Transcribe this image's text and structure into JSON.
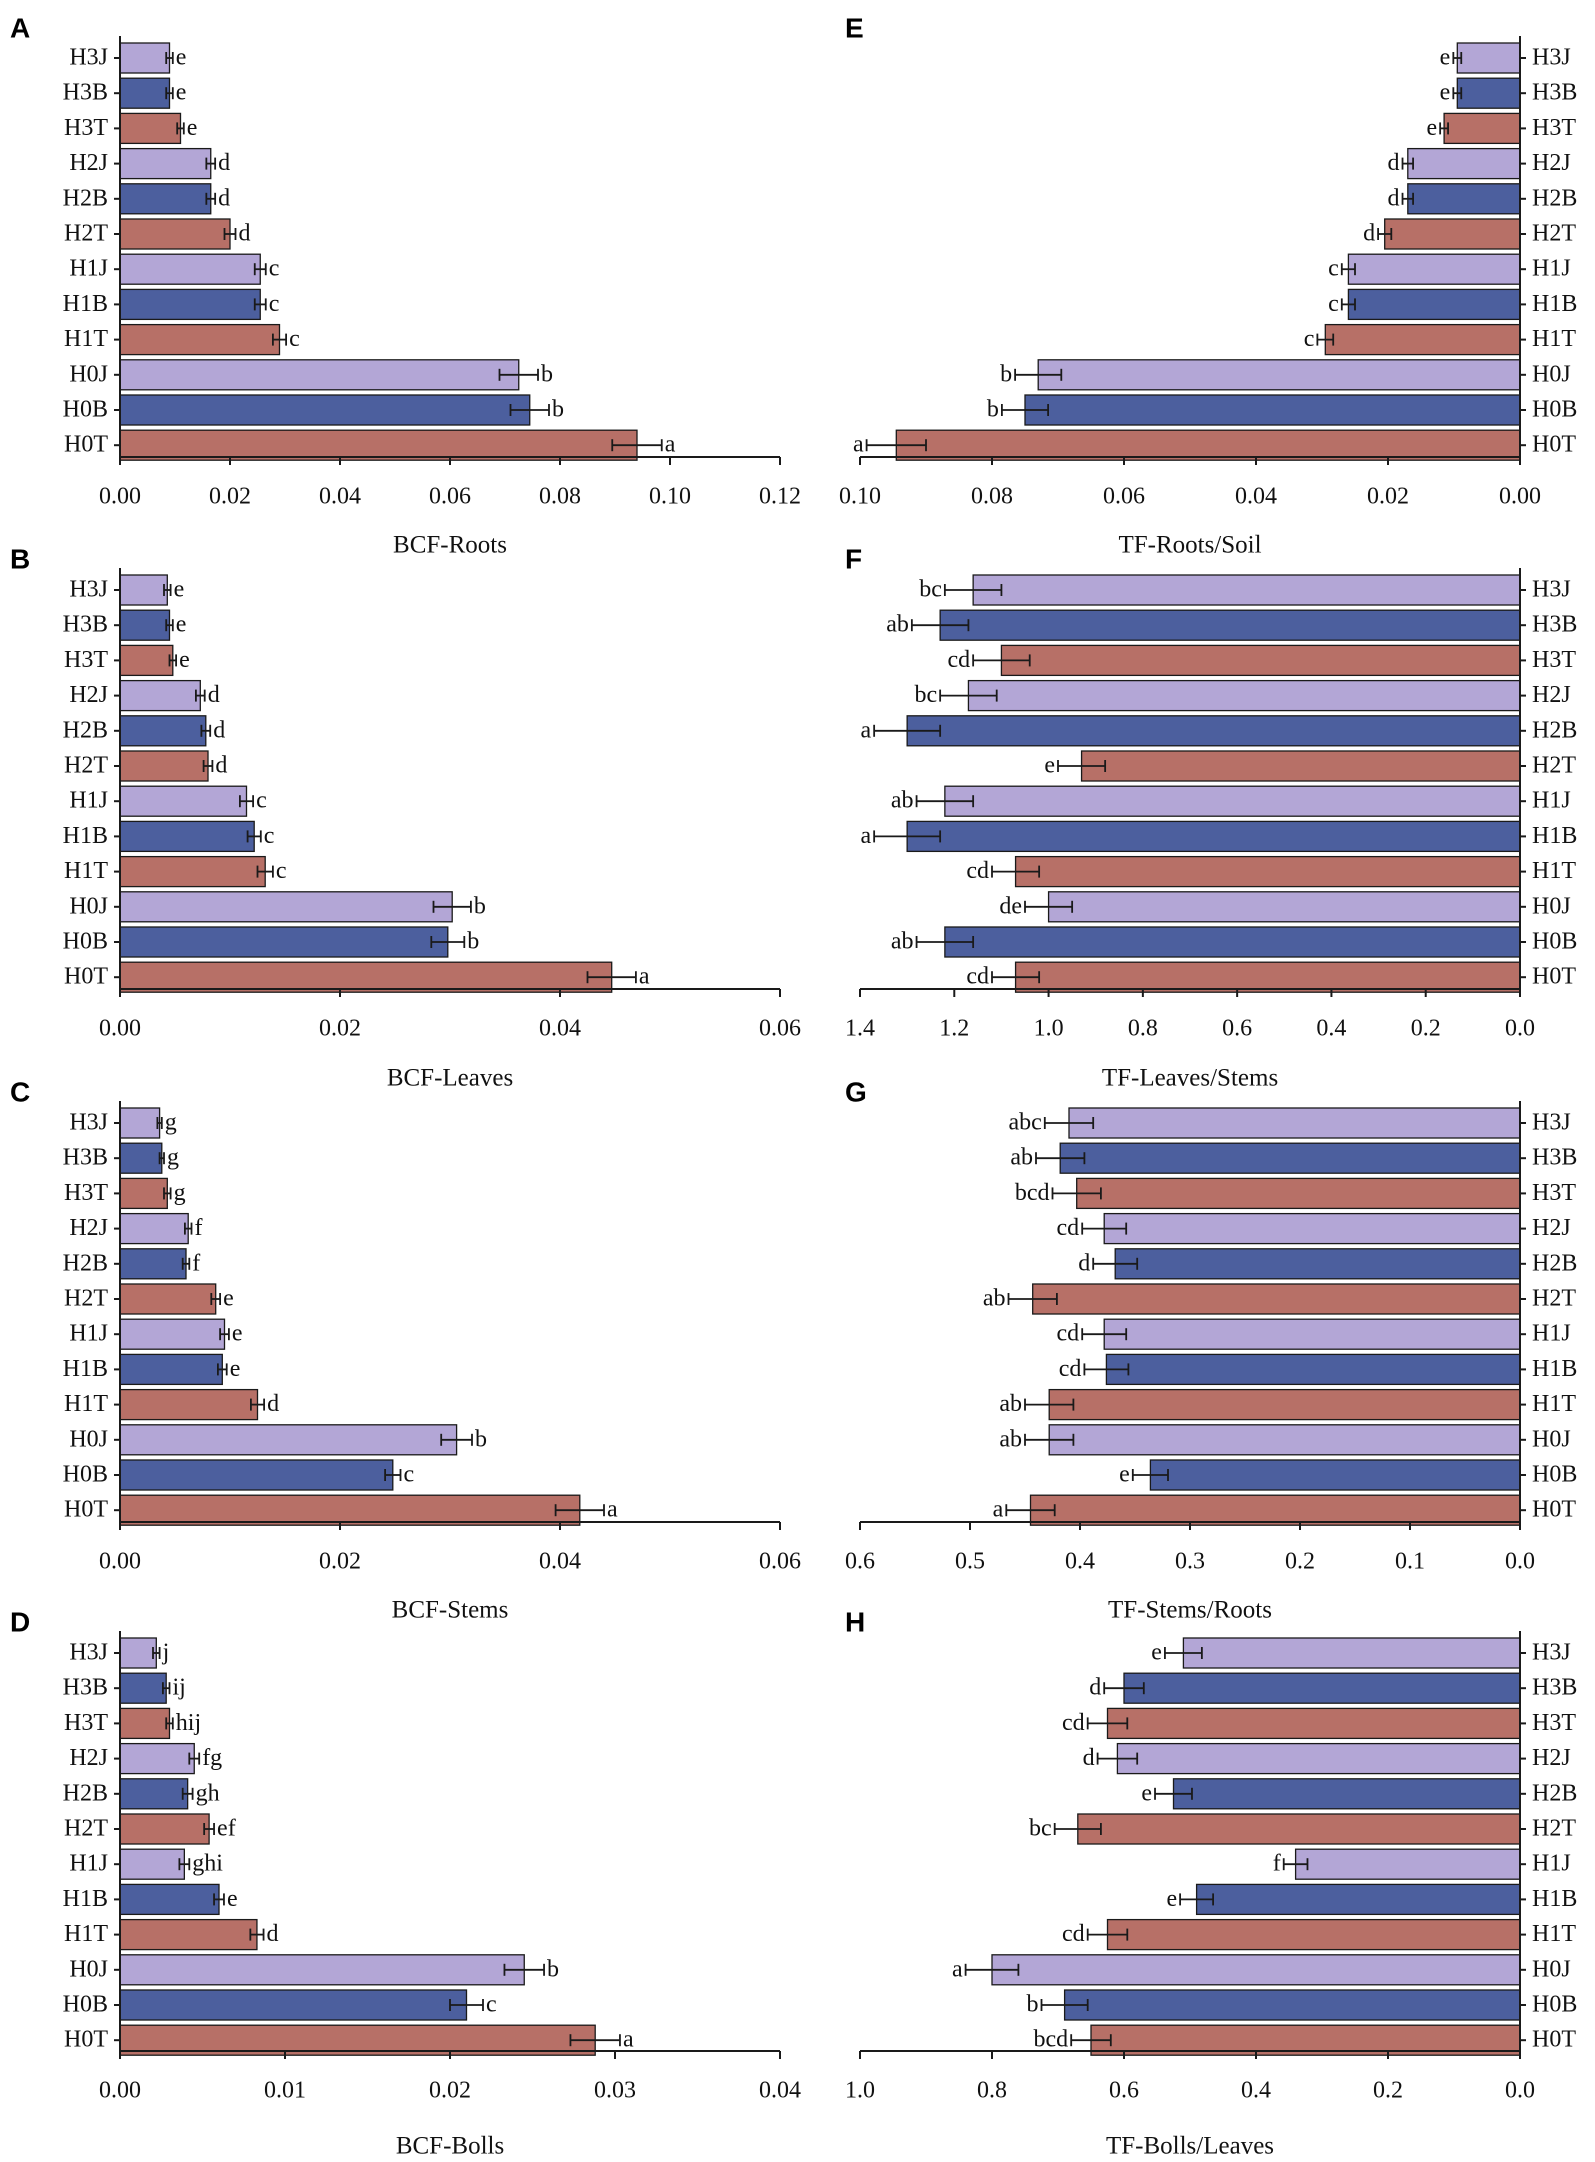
{
  "colors": {
    "J": "#B3A6D6",
    "B": "#4C5F9E",
    "T": "#B77067",
    "stroke": "#1a1a1a"
  },
  "chart_data": [
    {
      "panel": "A",
      "type": "bar",
      "orientation": "horizontal",
      "xlabel": "BCF-Roots",
      "xlim": [
        0,
        0.12
      ],
      "reversed": false,
      "ticks": [
        0,
        0.02,
        0.04,
        0.06,
        0.08,
        0.1,
        0.12
      ],
      "tick_labels": [
        "0.00",
        "0.02",
        "0.04",
        "0.06",
        "0.08",
        "0.10",
        "0.12"
      ],
      "categories": [
        "H3J",
        "H3B",
        "H3T",
        "H2J",
        "H2B",
        "H2T",
        "H1J",
        "H1B",
        "H1T",
        "H0J",
        "H0B",
        "H0T"
      ],
      "values": [
        0.009,
        0.009,
        0.011,
        0.0165,
        0.0165,
        0.02,
        0.0255,
        0.0255,
        0.029,
        0.0725,
        0.0745,
        0.094
      ],
      "errors": [
        0.0006,
        0.0006,
        0.0006,
        0.0008,
        0.0008,
        0.001,
        0.001,
        0.001,
        0.0012,
        0.0035,
        0.0035,
        0.0045
      ],
      "letters": [
        "e",
        "e",
        "e",
        "d",
        "d",
        "d",
        "c",
        "c",
        "c",
        "b",
        "b",
        "a"
      ]
    },
    {
      "panel": "B",
      "type": "bar",
      "orientation": "horizontal",
      "xlabel": "BCF-Leaves",
      "xlim": [
        0,
        0.06
      ],
      "reversed": false,
      "ticks": [
        0,
        0.02,
        0.04,
        0.06
      ],
      "tick_labels": [
        "0.00",
        "0.02",
        "0.04",
        "0.06"
      ],
      "categories": [
        "H3J",
        "H3B",
        "H3T",
        "H2J",
        "H2B",
        "H2T",
        "H1J",
        "H1B",
        "H1T",
        "H0J",
        "H0B",
        "H0T"
      ],
      "values": [
        0.0043,
        0.0045,
        0.0048,
        0.0073,
        0.0078,
        0.008,
        0.0115,
        0.0122,
        0.0132,
        0.0302,
        0.0298,
        0.0447
      ],
      "errors": [
        0.0003,
        0.0003,
        0.0003,
        0.0004,
        0.0004,
        0.0004,
        0.0006,
        0.0006,
        0.0007,
        0.0017,
        0.0015,
        0.0022
      ],
      "letters": [
        "e",
        "e",
        "e",
        "d",
        "d",
        "d",
        "c",
        "c",
        "c",
        "b",
        "b",
        "a"
      ]
    },
    {
      "panel": "C",
      "type": "bar",
      "orientation": "horizontal",
      "xlabel": "BCF-Stems",
      "xlim": [
        0,
        0.06
      ],
      "reversed": false,
      "ticks": [
        0,
        0.02,
        0.04,
        0.06
      ],
      "tick_labels": [
        "0.00",
        "0.02",
        "0.04",
        "0.06"
      ],
      "categories": [
        "H3J",
        "H3B",
        "H3T",
        "H2J",
        "H2B",
        "H2T",
        "H1J",
        "H1B",
        "H1T",
        "H0J",
        "H0B",
        "H0T"
      ],
      "values": [
        0.0036,
        0.0038,
        0.0043,
        0.0062,
        0.006,
        0.0087,
        0.0095,
        0.0093,
        0.0125,
        0.0306,
        0.0248,
        0.0418
      ],
      "errors": [
        0.0002,
        0.0002,
        0.0003,
        0.0003,
        0.0003,
        0.0004,
        0.0004,
        0.0004,
        0.0006,
        0.0014,
        0.0007,
        0.0022
      ],
      "letters": [
        "g",
        "g",
        "g",
        "f",
        "f",
        "e",
        "e",
        "e",
        "d",
        "b",
        "c",
        "a"
      ]
    },
    {
      "panel": "D",
      "type": "bar",
      "orientation": "horizontal",
      "xlabel": "BCF-Bolls",
      "xlim": [
        0,
        0.04
      ],
      "reversed": false,
      "ticks": [
        0,
        0.01,
        0.02,
        0.03,
        0.04
      ],
      "tick_labels": [
        "0.00",
        "0.01",
        "0.02",
        "0.03",
        "0.04"
      ],
      "categories": [
        "H3J",
        "H3B",
        "H3T",
        "H2J",
        "H2B",
        "H2T",
        "H1J",
        "H1B",
        "H1T",
        "H0J",
        "H0B",
        "H0T"
      ],
      "values": [
        0.0022,
        0.0028,
        0.003,
        0.0045,
        0.0041,
        0.0054,
        0.0039,
        0.006,
        0.0083,
        0.0245,
        0.021,
        0.0288
      ],
      "errors": [
        0.0002,
        0.0002,
        0.0002,
        0.0003,
        0.0003,
        0.0003,
        0.0003,
        0.0003,
        0.0004,
        0.0012,
        0.001,
        0.0015
      ],
      "letters": [
        "j",
        "ij",
        "hij",
        "fg",
        "gh",
        "ef",
        "ghi",
        "e",
        "d",
        "b",
        "c",
        "a"
      ]
    },
    {
      "panel": "E",
      "type": "bar",
      "orientation": "horizontal",
      "xlabel": "TF-Roots/Soil",
      "xlim": [
        0.1,
        0
      ],
      "reversed": true,
      "ticks": [
        0.1,
        0.08,
        0.06,
        0.04,
        0.02,
        0
      ],
      "tick_labels": [
        "0.10",
        "0.08",
        "0.06",
        "0.04",
        "0.02",
        "0.00"
      ],
      "categories": [
        "H3J",
        "H3B",
        "H3T",
        "H2J",
        "H2B",
        "H2T",
        "H1J",
        "H1B",
        "H1T",
        "H0J",
        "H0B",
        "H0T"
      ],
      "values": [
        0.0095,
        0.0095,
        0.0115,
        0.017,
        0.017,
        0.0205,
        0.026,
        0.026,
        0.0295,
        0.073,
        0.075,
        0.0945
      ],
      "errors": [
        0.0006,
        0.0006,
        0.0006,
        0.0008,
        0.0008,
        0.001,
        0.001,
        0.001,
        0.0012,
        0.0035,
        0.0035,
        0.0045
      ],
      "letters": [
        "e",
        "e",
        "e",
        "d",
        "d",
        "d",
        "c",
        "c",
        "c",
        "b",
        "b",
        "a"
      ]
    },
    {
      "panel": "F",
      "type": "bar",
      "orientation": "horizontal",
      "xlabel": "TF-Leaves/Stems",
      "xlim": [
        1.4,
        0
      ],
      "reversed": true,
      "ticks": [
        1.4,
        1.2,
        1.0,
        0.8,
        0.6,
        0.4,
        0.2,
        0.0
      ],
      "tick_labels": [
        "1.4",
        "1.2",
        "1.0",
        "0.8",
        "0.6",
        "0.4",
        "0.2",
        "0.0"
      ],
      "categories": [
        "H3J",
        "H3B",
        "H3T",
        "H2J",
        "H2B",
        "H2T",
        "H1J",
        "H1B",
        "H1T",
        "H0J",
        "H0B",
        "H0T"
      ],
      "values": [
        1.16,
        1.23,
        1.1,
        1.17,
        1.3,
        0.93,
        1.22,
        1.3,
        1.07,
        1.0,
        1.22,
        1.07
      ],
      "errors": [
        0.06,
        0.06,
        0.06,
        0.06,
        0.07,
        0.05,
        0.06,
        0.07,
        0.05,
        0.05,
        0.06,
        0.05
      ],
      "letters": [
        "bc",
        "ab",
        "cd",
        "bc",
        "a",
        "e",
        "ab",
        "a",
        "cd",
        "de",
        "ab",
        "cd"
      ]
    },
    {
      "panel": "G",
      "type": "bar",
      "orientation": "horizontal",
      "xlabel": "TF-Stems/Roots",
      "xlim": [
        0.6,
        0
      ],
      "reversed": true,
      "ticks": [
        0.6,
        0.5,
        0.4,
        0.3,
        0.2,
        0.1,
        0.0
      ],
      "tick_labels": [
        "0.6",
        "0.5",
        "0.4",
        "0.3",
        "0.2",
        "0.1",
        "0.0"
      ],
      "categories": [
        "H3J",
        "H3B",
        "H3T",
        "H2J",
        "H2B",
        "H2T",
        "H1J",
        "H1B",
        "H1T",
        "H0J",
        "H0B",
        "H0T"
      ],
      "values": [
        0.41,
        0.418,
        0.403,
        0.378,
        0.368,
        0.443,
        0.378,
        0.376,
        0.428,
        0.428,
        0.336,
        0.445
      ],
      "errors": [
        0.022,
        0.022,
        0.022,
        0.02,
        0.02,
        0.022,
        0.02,
        0.02,
        0.022,
        0.022,
        0.016,
        0.022
      ],
      "letters": [
        "abc",
        "ab",
        "bcd",
        "cd",
        "d",
        "ab",
        "cd",
        "cd",
        "ab",
        "ab",
        "e",
        "a"
      ]
    },
    {
      "panel": "H",
      "type": "bar",
      "orientation": "horizontal",
      "xlabel": "TF-Bolls/Leaves",
      "xlim": [
        1.0,
        0
      ],
      "reversed": true,
      "ticks": [
        1.0,
        0.8,
        0.6,
        0.4,
        0.2,
        0.0
      ],
      "tick_labels": [
        "1.0",
        "0.8",
        "0.6",
        "0.4",
        "0.2",
        "0.0"
      ],
      "categories": [
        "H3J",
        "H3B",
        "H3T",
        "H2J",
        "H2B",
        "H2T",
        "H1J",
        "H1B",
        "H1T",
        "H0J",
        "H0B",
        "H0T"
      ],
      "values": [
        0.51,
        0.6,
        0.625,
        0.61,
        0.525,
        0.67,
        0.34,
        0.49,
        0.625,
        0.8,
        0.69,
        0.65
      ],
      "errors": [
        0.028,
        0.03,
        0.03,
        0.03,
        0.028,
        0.035,
        0.018,
        0.025,
        0.03,
        0.04,
        0.035,
        0.03
      ],
      "letters": [
        "e",
        "d",
        "cd",
        "d",
        "e",
        "bc",
        "f",
        "e",
        "cd",
        "a",
        "b",
        "bcd"
      ]
    }
  ]
}
